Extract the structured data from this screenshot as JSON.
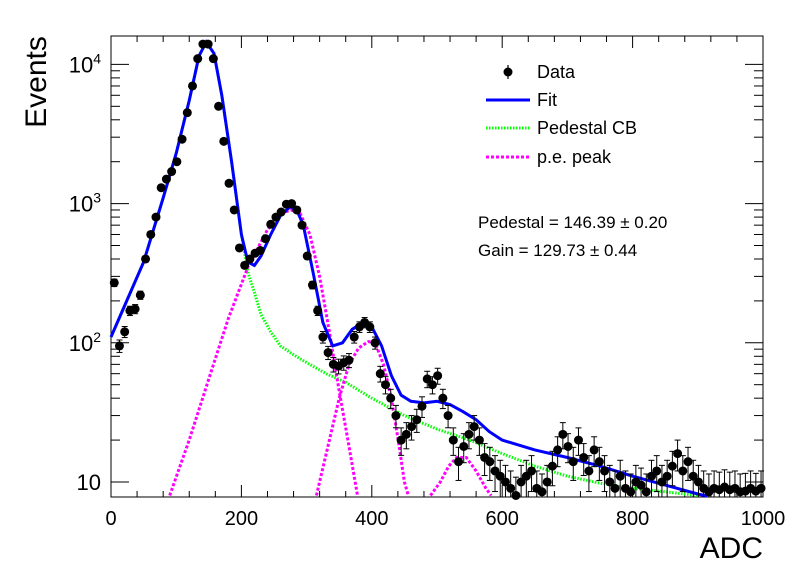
{
  "chart_data": {
    "type": "scatter",
    "title": "",
    "xlabel": "ADC",
    "ylabel": "Events",
    "xlim": [
      0,
      1000
    ],
    "ylim": [
      7.8,
      16000
    ],
    "yscale": "log",
    "grid": false,
    "legend_position": "top-right",
    "x_ticks": [
      0,
      200,
      400,
      600,
      800,
      1000
    ],
    "y_ticks": [
      {
        "value": 10,
        "base": "10",
        "exp": ""
      },
      {
        "value": 100,
        "base": "10",
        "exp": "2"
      },
      {
        "value": 1000,
        "base": "10",
        "exp": "3"
      },
      {
        "value": 10000,
        "base": "10",
        "exp": "4"
      }
    ],
    "legend": [
      {
        "label": "Data",
        "style": "marker",
        "color": "#000000"
      },
      {
        "label": "Fit",
        "style": "solid",
        "color": "#0000ff"
      },
      {
        "label": "Pedestal CB",
        "style": "dotted",
        "color": "#00ff00"
      },
      {
        "label": "p.e. peak",
        "style": "dashed",
        "color": "#ff00ff"
      }
    ],
    "annotations": [
      {
        "text": "Pedestal = 146.39 ± 0.20"
      },
      {
        "text": "Gain = 129.73 ± 0.44"
      }
    ],
    "series": [
      {
        "name": "Data",
        "kind": "points",
        "color": "#000000",
        "points": [
          [
            5,
            270
          ],
          [
            13,
            95
          ],
          [
            21,
            120
          ],
          [
            29,
            170
          ],
          [
            37,
            175
          ],
          [
            45,
            220
          ],
          [
            53,
            400
          ],
          [
            61,
            600
          ],
          [
            69,
            800
          ],
          [
            77,
            1300
          ],
          [
            85,
            1500
          ],
          [
            93,
            1700
          ],
          [
            101,
            2000
          ],
          [
            109,
            2900
          ],
          [
            117,
            4500
          ],
          [
            125,
            7000
          ],
          [
            133,
            11000
          ],
          [
            141,
            14000
          ],
          [
            149,
            14000
          ],
          [
            157,
            11000
          ],
          [
            165,
            5000
          ],
          [
            173,
            2800
          ],
          [
            181,
            1400
          ],
          [
            189,
            900
          ],
          [
            197,
            480
          ],
          [
            205,
            360
          ],
          [
            213,
            400
          ],
          [
            221,
            440
          ],
          [
            229,
            460
          ],
          [
            237,
            560
          ],
          [
            245,
            710
          ],
          [
            253,
            800
          ],
          [
            261,
            870
          ],
          [
            269,
            990
          ],
          [
            277,
            1000
          ],
          [
            285,
            900
          ],
          [
            293,
            700
          ],
          [
            301,
            420
          ],
          [
            309,
            260
          ],
          [
            317,
            170
          ],
          [
            325,
            110
          ],
          [
            333,
            85
          ],
          [
            341,
            70
          ],
          [
            349,
            68
          ],
          [
            357,
            72
          ],
          [
            365,
            75
          ],
          [
            373,
            110
          ],
          [
            381,
            130
          ],
          [
            389,
            140
          ],
          [
            397,
            130
          ],
          [
            405,
            100
          ],
          [
            413,
            60
          ],
          [
            421,
            50
          ],
          [
            429,
            40
          ],
          [
            437,
            30
          ],
          [
            445,
            20
          ],
          [
            453,
            22
          ],
          [
            461,
            25
          ],
          [
            469,
            28
          ],
          [
            477,
            35
          ],
          [
            485,
            55
          ],
          [
            493,
            50
          ],
          [
            501,
            58
          ],
          [
            509,
            40
          ],
          [
            517,
            30
          ],
          [
            525,
            20
          ],
          [
            533,
            14
          ],
          [
            541,
            18
          ],
          [
            549,
            22
          ],
          [
            557,
            25
          ],
          [
            565,
            20
          ],
          [
            573,
            15
          ],
          [
            581,
            14
          ],
          [
            589,
            12
          ],
          [
            597,
            11
          ],
          [
            605,
            10
          ],
          [
            613,
            9
          ],
          [
            621,
            8
          ],
          [
            629,
            10
          ],
          [
            637,
            11
          ],
          [
            645,
            12
          ],
          [
            653,
            9
          ],
          [
            661,
            8.5
          ],
          [
            669,
            10
          ],
          [
            677,
            13
          ],
          [
            685,
            17
          ],
          [
            693,
            22
          ],
          [
            701,
            18
          ],
          [
            709,
            14
          ],
          [
            717,
            20
          ],
          [
            725,
            15
          ],
          [
            733,
            12
          ],
          [
            741,
            17
          ],
          [
            749,
            14
          ],
          [
            757,
            12
          ],
          [
            765,
            10
          ],
          [
            773,
            9
          ],
          [
            781,
            11
          ],
          [
            789,
            9
          ],
          [
            797,
            8.5
          ],
          [
            805,
            10
          ],
          [
            813,
            9.5
          ],
          [
            821,
            8.5
          ],
          [
            829,
            11
          ],
          [
            837,
            12
          ],
          [
            845,
            10
          ],
          [
            853,
            11
          ],
          [
            861,
            13
          ],
          [
            869,
            16
          ],
          [
            877,
            12
          ],
          [
            885,
            14
          ],
          [
            893,
            11
          ],
          [
            901,
            10
          ],
          [
            909,
            9
          ],
          [
            917,
            8.5
          ],
          [
            925,
            9
          ],
          [
            933,
            8.8
          ],
          [
            941,
            9.2
          ],
          [
            949,
            8.8
          ],
          [
            957,
            9
          ],
          [
            965,
            8.5
          ],
          [
            973,
            8.6
          ],
          [
            981,
            9
          ],
          [
            989,
            8.6
          ],
          [
            997,
            9
          ]
        ]
      },
      {
        "name": "Fit",
        "kind": "line",
        "color": "#0000ff",
        "points": [
          [
            0,
            110
          ],
          [
            50,
            380
          ],
          [
            80,
            1100
          ],
          [
            100,
            2300
          ],
          [
            120,
            5500
          ],
          [
            135,
            11500
          ],
          [
            146,
            14500
          ],
          [
            158,
            12000
          ],
          [
            170,
            6000
          ],
          [
            185,
            2000
          ],
          [
            200,
            600
          ],
          [
            210,
            380
          ],
          [
            220,
            360
          ],
          [
            230,
            420
          ],
          [
            245,
            600
          ],
          [
            260,
            820
          ],
          [
            275,
            950
          ],
          [
            285,
            900
          ],
          [
            295,
            700
          ],
          [
            310,
            320
          ],
          [
            325,
            140
          ],
          [
            340,
            95
          ],
          [
            355,
            100
          ],
          [
            370,
            125
          ],
          [
            385,
            138
          ],
          [
            400,
            130
          ],
          [
            415,
            95
          ],
          [
            430,
            58
          ],
          [
            445,
            42
          ],
          [
            460,
            38
          ],
          [
            480,
            37
          ],
          [
            500,
            38
          ],
          [
            520,
            36
          ],
          [
            540,
            32
          ],
          [
            560,
            28
          ],
          [
            580,
            23
          ],
          [
            600,
            20
          ],
          [
            650,
            17
          ],
          [
            700,
            15
          ],
          [
            750,
            13
          ],
          [
            800,
            11
          ],
          [
            850,
            9.5
          ],
          [
            900,
            8.2
          ],
          [
            915,
            7.9
          ]
        ]
      },
      {
        "name": "Pedestal CB",
        "kind": "line",
        "color": "#00ff00",
        "points": [
          [
            0,
            110
          ],
          [
            50,
            380
          ],
          [
            80,
            1100
          ],
          [
            100,
            2300
          ],
          [
            120,
            5500
          ],
          [
            135,
            11500
          ],
          [
            146,
            14500
          ],
          [
            158,
            12000
          ],
          [
            170,
            6000
          ],
          [
            185,
            2000
          ],
          [
            200,
            600
          ],
          [
            210,
            320
          ],
          [
            220,
            230
          ],
          [
            230,
            160
          ],
          [
            245,
            120
          ],
          [
            260,
            95
          ],
          [
            280,
            82
          ],
          [
            300,
            72
          ],
          [
            330,
            60
          ],
          [
            360,
            52
          ],
          [
            400,
            40
          ],
          [
            450,
            30
          ],
          [
            500,
            24
          ],
          [
            550,
            20
          ],
          [
            600,
            16
          ],
          [
            650,
            13
          ],
          [
            700,
            11
          ],
          [
            750,
            9.8
          ],
          [
            800,
            9
          ],
          [
            850,
            8.5
          ],
          [
            900,
            8
          ]
        ]
      },
      {
        "name": "p.e. peak",
        "kind": "line",
        "color": "#ff00ff",
        "segments": [
          [
            [
              90,
              8
            ],
            [
              120,
              20
            ],
            [
              150,
              55
            ],
            [
              180,
              150
            ],
            [
              210,
              350
            ],
            [
              240,
              650
            ],
            [
              260,
              850
            ],
            [
              276,
              900
            ],
            [
              290,
              850
            ],
            [
              305,
              600
            ],
            [
              320,
              300
            ],
            [
              335,
              120
            ],
            [
              350,
              45
            ],
            [
              365,
              18
            ],
            [
              378,
              8
            ]
          ],
          [
            [
              315,
              8
            ],
            [
              335,
              20
            ],
            [
              350,
              40
            ],
            [
              365,
              70
            ],
            [
              380,
              92
            ],
            [
              395,
              102
            ],
            [
              405,
              100
            ],
            [
              418,
              70
            ],
            [
              430,
              40
            ],
            [
              442,
              18
            ],
            [
              450,
              10
            ],
            [
              456,
              8
            ]
          ],
          [
            [
              490,
              8
            ],
            [
              505,
              10
            ],
            [
              518,
              13
            ],
            [
              530,
              15
            ],
            [
              545,
              15
            ],
            [
              560,
              12
            ],
            [
              575,
              9
            ],
            [
              583,
              8
            ]
          ]
        ]
      }
    ]
  }
}
